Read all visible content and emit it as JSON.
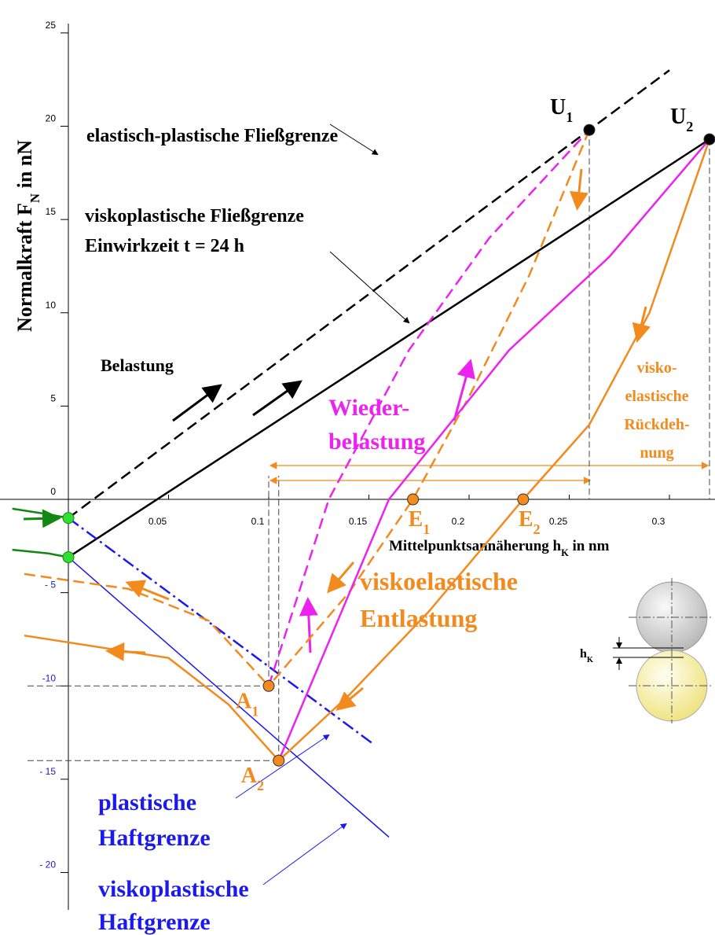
{
  "chart_data": {
    "type": "line",
    "ylabel": [
      "Normalkraft F",
      "N",
      " in nN"
    ],
    "xlabel": [
      "Mittelpunktsannäherung h",
      "K",
      " in nm"
    ],
    "xlim": [
      0,
      0.32
    ],
    "ylim": [
      -22,
      25.5
    ],
    "xticks": [
      0.05,
      0.1,
      0.15,
      0.2,
      0.25,
      0.3
    ],
    "yticks": [
      25,
      20,
      15,
      10,
      5,
      0,
      {
        "value": -5,
        "label": "- 5"
      },
      {
        "value": -10,
        "label": "-10"
      },
      {
        "value": -15,
        "label": "- 15"
      },
      {
        "value": -20,
        "label": "- 20"
      }
    ],
    "negative_tick_color": "#1a1acc",
    "series": [
      {
        "color": "#000000",
        "dash": "dashed",
        "x": [
          0,
          0.3
        ],
        "values": [
          -1,
          23
        ]
      },
      {
        "color": "#000000",
        "dash": "solid",
        "x": [
          0,
          0.32
        ],
        "values": [
          -3.1,
          19.3
        ]
      },
      {
        "color": "#1a1aee",
        "dash": "dashdot",
        "x": [
          0,
          0.152
        ],
        "values": [
          -1,
          -13.1
        ]
      },
      {
        "color": "#1a1aee",
        "dash": "solid",
        "x": [
          0,
          0.16
        ],
        "values": [
          -3.1,
          -18.1
        ]
      },
      {
        "color": "#f28a1e",
        "dash": "dashed",
        "x": [
          0.26,
          0.23,
          0.2,
          0.172,
          0.14,
          0.1
        ],
        "values": [
          19.8,
          12,
          5.5,
          0,
          -5,
          -10
        ]
      },
      {
        "color": "#f28a1e",
        "dash": "solid",
        "x": [
          0.32,
          0.29,
          0.26,
          0.227,
          0.18,
          0.14,
          0.105
        ],
        "values": [
          19.3,
          10,
          4,
          0,
          -6,
          -10.5,
          -14
        ]
      },
      {
        "color": "#ee22ee",
        "dash": "dashed",
        "x": [
          0.1,
          0.13,
          0.17,
          0.21,
          0.26
        ],
        "values": [
          -10,
          0,
          8,
          14,
          19.8
        ]
      },
      {
        "color": "#ee22ee",
        "dash": "solid",
        "x": [
          0.105,
          0.16,
          0.22,
          0.27,
          0.32
        ],
        "values": [
          -14,
          0,
          8,
          13,
          19.3
        ]
      },
      {
        "color": "#f28a1e",
        "dash": "dashed",
        "x": [
          -0.022,
          0.03,
          0.07,
          0.1
        ],
        "values": [
          -4,
          -4.8,
          -6.5,
          -10
        ]
      },
      {
        "color": "#f28a1e",
        "dash": "solid",
        "x": [
          -0.022,
          0.05,
          0.08,
          0.105
        ],
        "values": [
          -7.3,
          -8.5,
          -11,
          -14
        ]
      },
      {
        "color": "#118811",
        "dash": "solid",
        "x": [
          -0.028,
          -0.01,
          0
        ],
        "values": [
          -0.5,
          -0.8,
          -1
        ]
      },
      {
        "color": "#118811",
        "dash": "solid",
        "x": [
          -0.028,
          -0.01,
          0
        ],
        "values": [
          -2.7,
          -2.9,
          -3.1
        ]
      }
    ],
    "points": [
      {
        "label": "U",
        "sub": "1",
        "x": 0.26,
        "y": 19.8,
        "color": "#000000"
      },
      {
        "label": "U",
        "sub": "2",
        "x": 0.32,
        "y": 19.3,
        "color": "#000000"
      },
      {
        "label": "A",
        "sub": "1",
        "x": 0.1,
        "y": -10,
        "color": "#f28a1e"
      },
      {
        "label": "A",
        "sub": "2",
        "x": 0.105,
        "y": -14,
        "color": "#f28a1e"
      },
      {
        "label": "E",
        "sub": "1",
        "x": 0.172,
        "y": 0,
        "color": "#f28a1e"
      },
      {
        "label": "E",
        "sub": "2",
        "x": 0.227,
        "y": 0,
        "color": "#f28a1e"
      },
      {
        "x": 0,
        "y": -1,
        "color": "#33dd33"
      },
      {
        "x": 0,
        "y": -3.1,
        "color": "#33dd33"
      }
    ],
    "annotations": [
      {
        "lines": [
          "elastisch-plastische Fließgrenze"
        ],
        "color": "#000000"
      },
      {
        "lines": [
          "viskoplastische Fließgrenze",
          "Einwirkzeit t = 24 h"
        ],
        "color": "#000000"
      },
      {
        "lines": [
          "Belastung"
        ],
        "color": "#000000"
      },
      {
        "lines": [
          "Wieder-",
          "belastung"
        ],
        "color": "#ee22ee"
      },
      {
        "lines": [
          "visko-",
          "elastische",
          "Rückdeh-",
          "nung"
        ],
        "color": "#f28a1e"
      },
      {
        "lines": [
          "viskoelastische",
          "Entlastung"
        ],
        "color": "#f28a1e"
      },
      {
        "lines": [
          "plastische",
          "Haftgrenze"
        ],
        "color": "#1a1aee"
      },
      {
        "lines": [
          "viskoplastische",
          "Haftgrenze"
        ],
        "color": "#1a1aee"
      }
    ],
    "inset_label": [
      "h",
      "K"
    ]
  }
}
